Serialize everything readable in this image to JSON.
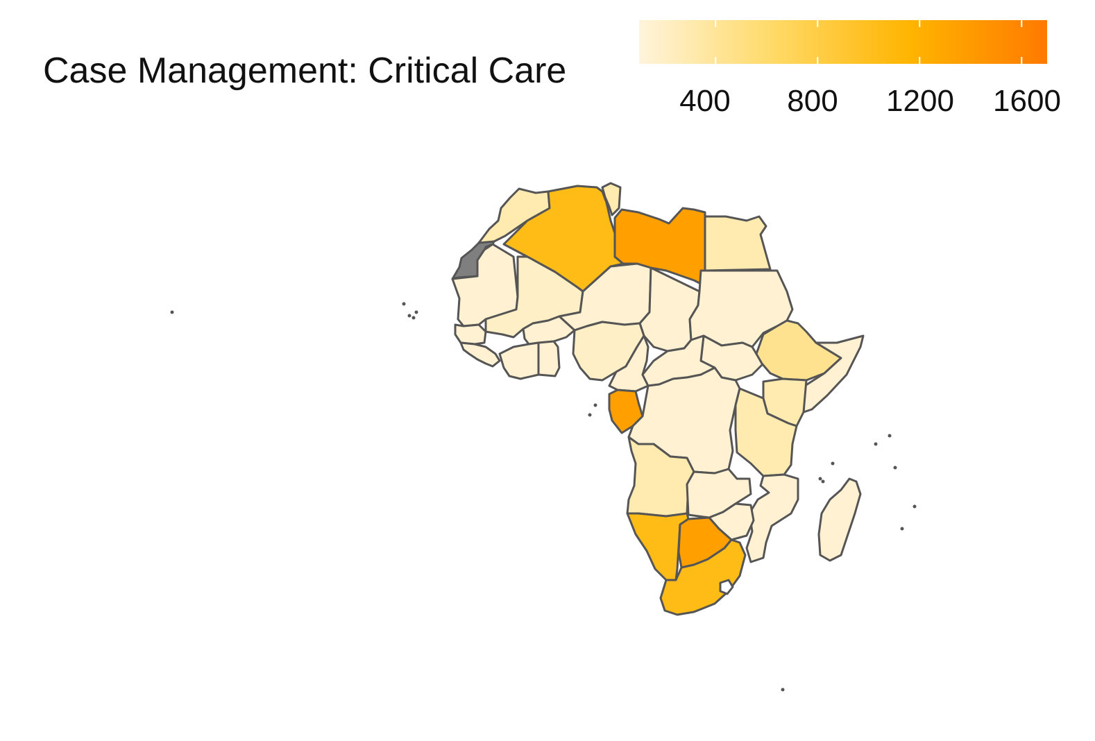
{
  "title": "Case Management: Critical Care",
  "legend": {
    "ticks": [
      "400",
      "800",
      "1200",
      "1600"
    ],
    "range": [
      100,
      1700
    ],
    "tick_values": [
      400,
      800,
      1200,
      1600
    ],
    "gradient": [
      "#fff4dc",
      "#ffd966",
      "#ffb400",
      "#ff7a00"
    ]
  },
  "colors": {
    "border": "#555555",
    "missing": "#7f7f7f",
    "low": "#fff2cc"
  },
  "regions": [
    {
      "name": "Morocco",
      "value": 300
    },
    {
      "name": "Western Sahara",
      "value": null
    },
    {
      "name": "Algeria",
      "value": 1050
    },
    {
      "name": "Tunisia",
      "value": 300
    },
    {
      "name": "Libya",
      "value": 1350
    },
    {
      "name": "Egypt",
      "value": 300
    },
    {
      "name": "Mauritania",
      "value": 150
    },
    {
      "name": "Mali",
      "value": 200
    },
    {
      "name": "Niger",
      "value": 150
    },
    {
      "name": "Chad",
      "value": 150
    },
    {
      "name": "Sudan",
      "value": 150
    },
    {
      "name": "South Sudan",
      "value": 150
    },
    {
      "name": "Ethiopia",
      "value": 450
    },
    {
      "name": "Somalia",
      "value": 150
    },
    {
      "name": "Kenya",
      "value": 300
    },
    {
      "name": "Senegal",
      "value": 150
    },
    {
      "name": "Guinea",
      "value": 150
    },
    {
      "name": "Burkina Faso",
      "value": 150
    },
    {
      "name": "Ghana",
      "value": 150
    },
    {
      "name": "Côte d'Ivoire",
      "value": 150
    },
    {
      "name": "Nigeria",
      "value": 200
    },
    {
      "name": "Cameroon",
      "value": 150
    },
    {
      "name": "Central African Republic",
      "value": 150
    },
    {
      "name": "Gabon",
      "value": 1350
    },
    {
      "name": "DR Congo",
      "value": 150
    },
    {
      "name": "Tanzania",
      "value": 300
    },
    {
      "name": "Angola",
      "value": 300
    },
    {
      "name": "Zambia",
      "value": 150
    },
    {
      "name": "Mozambique",
      "value": 150
    },
    {
      "name": "Zimbabwe",
      "value": 150
    },
    {
      "name": "Namibia",
      "value": 1050
    },
    {
      "name": "Botswana",
      "value": 1350
    },
    {
      "name": "South Africa",
      "value": 1050
    },
    {
      "name": "Madagascar",
      "value": 150
    }
  ]
}
